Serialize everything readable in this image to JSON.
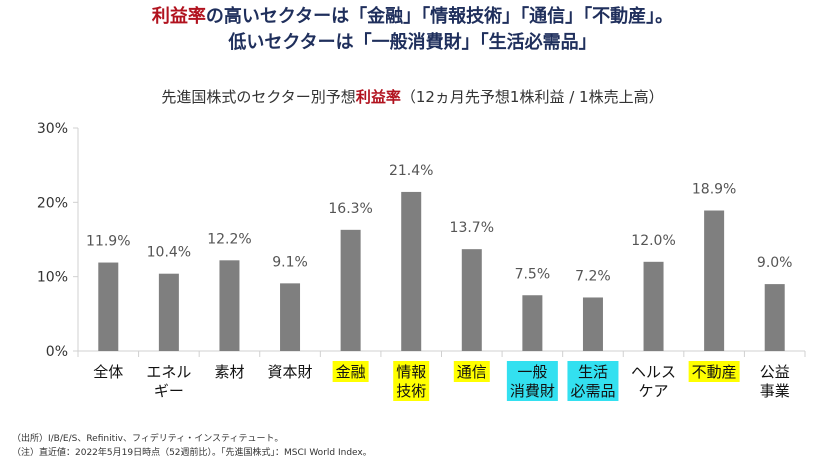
{
  "headline": {
    "line1_parts": [
      "利益率",
      "の高いセクターは「金融」「情報技術」「通信」「不動産」。"
    ],
    "line2": "低いセクターは「一般消費財」「生活必需品」"
  },
  "subtitle_parts": [
    "先進国株式のセクター別予想",
    "利益率",
    "（12ヵ月先予想1株利益 / 1株売上高）"
  ],
  "colors": {
    "bar": "#7f7f7f",
    "highlight_yellow": "#ffff00",
    "highlight_cyan": "#33e0f0",
    "accent_red": "#b1121e",
    "title_navy": "#1f2f5c"
  },
  "chart_data": {
    "type": "bar",
    "title": "先進国株式のセクター別予想利益率（12ヵ月先予想1株利益 / 1株売上高）",
    "categories": [
      "全体",
      "エネルギー",
      "素材",
      "資本財",
      "金融",
      "情報技術",
      "通信",
      "一般消費財",
      "生活必需品",
      "ヘルスケア",
      "不動産",
      "公益事業"
    ],
    "category_lines": [
      [
        "全体"
      ],
      [
        "エネル",
        "ギー"
      ],
      [
        "素材"
      ],
      [
        "資本財"
      ],
      [
        "金融"
      ],
      [
        "情報",
        "技術"
      ],
      [
        "通信"
      ],
      [
        "一般",
        "消費財"
      ],
      [
        "生活",
        "必需品"
      ],
      [
        "ヘルス",
        "ケア"
      ],
      [
        "不動産"
      ],
      [
        "公益",
        "事業"
      ]
    ],
    "highlight": [
      "none",
      "none",
      "none",
      "none",
      "yellow",
      "yellow",
      "yellow",
      "cyan",
      "cyan",
      "none",
      "yellow",
      "none"
    ],
    "values": [
      11.9,
      10.4,
      12.2,
      9.1,
      16.3,
      21.4,
      13.7,
      7.5,
      7.2,
      12.0,
      18.9,
      9.0
    ],
    "value_labels": [
      "11.9%",
      "10.4%",
      "12.2%",
      "9.1%",
      "16.3%",
      "21.4%",
      "13.7%",
      "7.5%",
      "7.2%",
      "12.0%",
      "18.9%",
      "9.0%"
    ],
    "ylim": [
      0,
      30
    ],
    "yticks": [
      0,
      10,
      20,
      30
    ],
    "ytick_labels": [
      "0%",
      "10%",
      "20%",
      "30%"
    ],
    "xlabel": "",
    "ylabel": "",
    "grid": false
  },
  "notes": [
    "（出所）I/B/E/S、Refinitiv、フィデリティ・インスティテュート。",
    "（注）直近値：2022年5月19日時点（52週前比）。「先進国株式」：MSCI World Index。"
  ]
}
